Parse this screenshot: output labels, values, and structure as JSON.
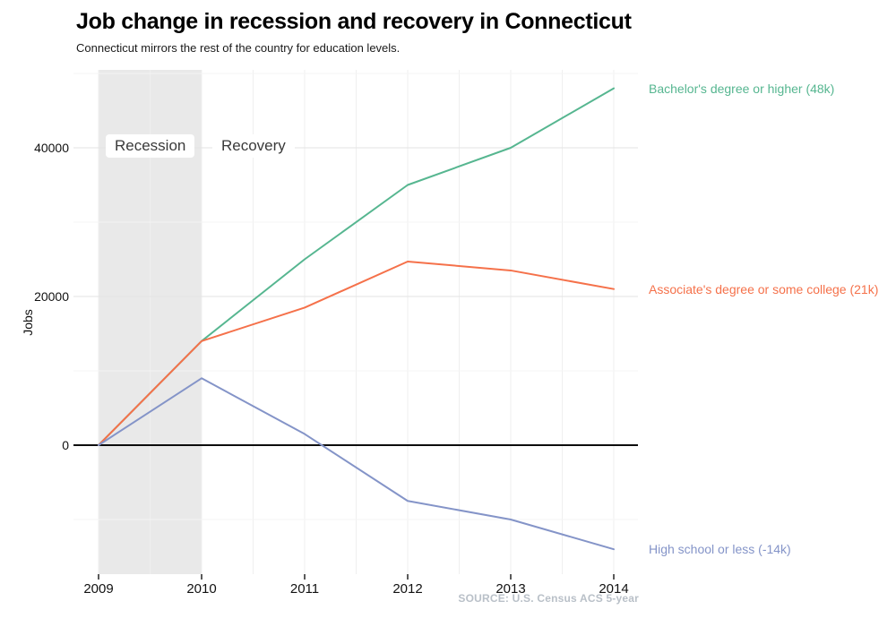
{
  "header": {
    "title": "Job change in recession and recovery in Connecticut",
    "subtitle": "Connecticut mirrors the rest of the country for education levels."
  },
  "chart_data": {
    "type": "line",
    "x": [
      2009,
      2010,
      2011,
      2012,
      2013,
      2014
    ],
    "series": [
      {
        "name": "bachelors-degree-or-higher",
        "label": "Bachelor's degree or higher (48k)",
        "color": "#56b690",
        "values": [
          0,
          14000,
          25000,
          35000,
          40000,
          48000
        ]
      },
      {
        "name": "associates-degree-or-some-college",
        "label": "Associate's degree or some college (21k)",
        "color": "#f5714a",
        "values": [
          0,
          14000,
          18500,
          24700,
          23500,
          21000
        ]
      },
      {
        "name": "high-school-or-less",
        "label": "High school or less (-14k)",
        "color": "#8494c8",
        "values": [
          0,
          9000,
          1500,
          -7500,
          -10000,
          -14000
        ]
      }
    ],
    "ylabel": "Jobs",
    "yticks": [
      0,
      20000,
      40000
    ],
    "minor_yticks": [
      -10000,
      10000,
      30000,
      50000
    ],
    "ylim": [
      -17500,
      50500
    ],
    "grid": "on",
    "legend_position": "right-of-line-ends",
    "recession_band": {
      "from": 2009,
      "to": 2010,
      "color": "#e9e9e9"
    },
    "annotations": [
      {
        "text": "Recession",
        "boxed": true
      },
      {
        "text": "Recovery",
        "boxed": true
      }
    ],
    "zero_line_color": "#0d0d0d",
    "source": "SOURCE: U.S. Census ACS 5-year"
  }
}
